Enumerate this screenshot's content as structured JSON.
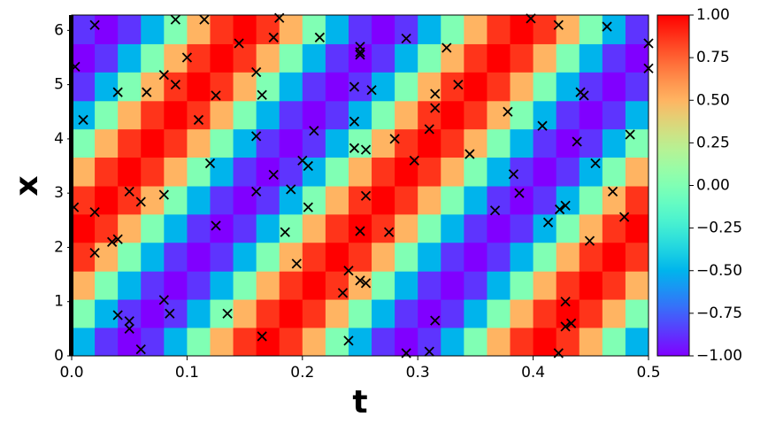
{
  "chart_data": {
    "type": "heatmap",
    "colormap": "rainbow",
    "xlabel": "t",
    "ylabel": "x",
    "xlim": [
      0,
      0.5
    ],
    "ylim": [
      0,
      6.283
    ],
    "xticks": [
      {
        "value": 0,
        "label": "0.0"
      },
      0.1,
      0.2,
      0.3,
      0.4,
      0.5
    ],
    "yticks": [
      0,
      1,
      2,
      3,
      4,
      5,
      6
    ],
    "clim": [
      -1,
      1
    ],
    "cticks": [
      {
        "value": -1,
        "label": "−1.00"
      },
      {
        "value": -0.75,
        "label": "−0.75"
      },
      {
        "value": -0.5,
        "label": "−0.50"
      },
      {
        "value": -0.25,
        "label": "−0.25"
      },
      {
        "value": 0,
        "label": "0.00"
      },
      {
        "value": 0.25,
        "label": "0.25"
      },
      {
        "value": 0.5,
        "label": "0.50"
      },
      {
        "value": 0.75,
        "label": "0.75"
      },
      {
        "value": 1,
        "label": "1.00"
      }
    ],
    "x": [
      0.01,
      0.03,
      0.05,
      0.07,
      0.09,
      0.11,
      0.13,
      0.15,
      0.17,
      0.19,
      0.21,
      0.23,
      0.25,
      0.27,
      0.29,
      0.31,
      0.33,
      0.35,
      0.37,
      0.39,
      0.41,
      0.43,
      0.45,
      0.47,
      0.49
    ],
    "y": [
      0.26,
      0.79,
      1.31,
      1.83,
      2.36,
      2.88,
      3.4,
      3.93,
      4.45,
      4.97,
      5.5,
      6.02
    ],
    "z": [
      [
        -0.5,
        -0.87,
        -1,
        -0.87,
        -0.5,
        0,
        0.5,
        0.87,
        1,
        0.87,
        0.5,
        0,
        -0.5,
        -0.87,
        -1,
        -0.87,
        -0.5,
        0,
        0.5,
        0.87,
        1,
        0.87,
        0.5,
        0,
        -0.5
      ],
      [
        0,
        -0.5,
        -0.87,
        -1,
        -0.87,
        -0.5,
        0,
        0.5,
        0.87,
        1,
        0.87,
        0.5,
        0,
        -0.5,
        -0.87,
        -1,
        -0.87,
        -0.5,
        0,
        0.5,
        0.87,
        1,
        0.87,
        0.5,
        0
      ],
      [
        0.5,
        0,
        -0.5,
        -0.87,
        -1,
        -0.87,
        -0.5,
        0,
        0.5,
        0.87,
        1,
        0.87,
        0.5,
        0,
        -0.5,
        -0.87,
        -1,
        -0.87,
        -0.5,
        0,
        0.5,
        0.87,
        1,
        0.87,
        0.5
      ],
      [
        0.87,
        0.5,
        0,
        -0.5,
        -0.87,
        -1,
        -0.87,
        -0.5,
        0,
        0.5,
        0.87,
        1,
        0.87,
        0.5,
        0,
        -0.5,
        -0.87,
        -1,
        -0.87,
        -0.5,
        0,
        0.5,
        0.87,
        1,
        0.87
      ],
      [
        1,
        0.87,
        0.5,
        0,
        -0.5,
        -0.87,
        -1,
        -0.87,
        -0.5,
        0,
        0.5,
        0.87,
        1,
        0.87,
        0.5,
        0,
        -0.5,
        -0.87,
        -1,
        -0.87,
        -0.5,
        0,
        0.5,
        0.87,
        1
      ],
      [
        0.87,
        1,
        0.87,
        0.5,
        0,
        -0.5,
        -0.87,
        -1,
        -0.87,
        -0.5,
        0,
        0.5,
        0.87,
        1,
        0.87,
        0.5,
        0,
        -0.5,
        -0.87,
        -1,
        -0.87,
        -0.5,
        0,
        0.5,
        0.87
      ],
      [
        0.5,
        0.87,
        1,
        0.87,
        0.5,
        0,
        -0.5,
        -0.87,
        -1,
        -0.87,
        -0.5,
        0,
        0.5,
        0.87,
        1,
        0.87,
        0.5,
        0,
        -0.5,
        -0.87,
        -1,
        -0.87,
        -0.5,
        0,
        0.5
      ],
      [
        0,
        0.5,
        0.87,
        1,
        0.87,
        0.5,
        0,
        -0.5,
        -0.87,
        -1,
        -0.87,
        -0.5,
        0,
        0.5,
        0.87,
        1,
        0.87,
        0.5,
        0,
        -0.5,
        -0.87,
        -1,
        -0.87,
        -0.5,
        0
      ],
      [
        -0.5,
        0,
        0.5,
        0.87,
        1,
        0.87,
        0.5,
        0,
        -0.5,
        -0.87,
        -1,
        -0.87,
        -0.5,
        0,
        0.5,
        0.87,
        1,
        0.87,
        0.5,
        0,
        -0.5,
        -0.87,
        -1,
        -0.87,
        -0.5
      ],
      [
        -0.87,
        -0.5,
        0,
        0.5,
        0.87,
        1,
        0.87,
        0.5,
        0,
        -0.5,
        -0.87,
        -1,
        -0.87,
        -0.5,
        0,
        0.5,
        0.87,
        1,
        0.87,
        0.5,
        0,
        -0.5,
        -0.87,
        -1,
        -0.87
      ],
      [
        -1,
        -0.87,
        -0.5,
        0,
        0.5,
        0.87,
        1,
        0.87,
        0.5,
        0,
        -0.5,
        -0.87,
        -1,
        -0.87,
        -0.5,
        0,
        0.5,
        0.87,
        1,
        0.87,
        0.5,
        0,
        -0.5,
        -0.87,
        -1
      ],
      [
        -0.87,
        -1,
        -0.87,
        -0.5,
        0,
        0.5,
        0.87,
        1,
        0.87,
        0.5,
        0,
        -0.5,
        -0.87,
        -1,
        -0.87,
        -0.5,
        0,
        0.5,
        0.87,
        1,
        0.87,
        0.5,
        0,
        -0.5,
        -0.87
      ]
    ],
    "scatter": {
      "marker_color": "#000000",
      "x": [
        0.02,
        0.003,
        0.01,
        0.002,
        0.02,
        0.02,
        0.04,
        0.035,
        0.04,
        0.04,
        0.05,
        0.06,
        0.05,
        0.05,
        0.06,
        0.065,
        0.08,
        0.08,
        0.08,
        0.085,
        0.09,
        0.09,
        0.1,
        0.11,
        0.115,
        0.12,
        0.125,
        0.125,
        0.135,
        0.145,
        0.16,
        0.16,
        0.16,
        0.165,
        0.165,
        0.175,
        0.175,
        0.18,
        0.185,
        0.19,
        0.195,
        0.2,
        0.205,
        0.205,
        0.21,
        0.215,
        0.235,
        0.24,
        0.24,
        0.245,
        0.245,
        0.245,
        0.25,
        0.25,
        0.25,
        0.25,
        0.25,
        0.255,
        0.255,
        0.255,
        0.26,
        0.275,
        0.28,
        0.29,
        0.297,
        0.29,
        0.31,
        0.31,
        0.315,
        0.315,
        0.315,
        0.325,
        0.335,
        0.345,
        0.367,
        0.378,
        0.383,
        0.388,
        0.398,
        0.408,
        0.413,
        0.422,
        0.423,
        0.422,
        0.428,
        0.428,
        0.428,
        0.433,
        0.438,
        0.441,
        0.444,
        0.449,
        0.454,
        0.464,
        0.469,
        0.484,
        0.479,
        0.5,
        0.5
      ],
      "y": [
        6.1,
        5.33,
        4.35,
        2.74,
        2.65,
        1.9,
        4.86,
        2.1,
        2.15,
        0.75,
        3.03,
        2.84,
        0.64,
        0.5,
        0.12,
        4.86,
        5.18,
        2.97,
        1.03,
        0.78,
        5.0,
        6.2,
        5.5,
        4.35,
        6.2,
        3.55,
        4.8,
        2.4,
        0.78,
        5.76,
        5.23,
        4.05,
        3.03,
        4.81,
        0.36,
        5.87,
        3.34,
        6.23,
        2.28,
        3.07,
        1.7,
        3.6,
        3.5,
        2.74,
        4.15,
        5.87,
        1.16,
        1.57,
        0.28,
        4.96,
        4.32,
        3.83,
        5.6,
        5.7,
        5.55,
        2.3,
        1.39,
        3.8,
        2.95,
        1.34,
        4.9,
        2.28,
        4.0,
        5.85,
        3.6,
        0.05,
        4.18,
        0.08,
        4.83,
        4.57,
        0.65,
        5.68,
        5.0,
        3.72,
        2.68,
        4.5,
        3.35,
        3.0,
        6.22,
        4.24,
        2.46,
        6.1,
        2.7,
        0.05,
        2.77,
        1.0,
        0.54,
        0.6,
        3.95,
        4.86,
        4.8,
        2.12,
        3.55,
        6.07,
        3.03,
        4.08,
        2.56,
        5.76,
        5.3
      ]
    }
  }
}
